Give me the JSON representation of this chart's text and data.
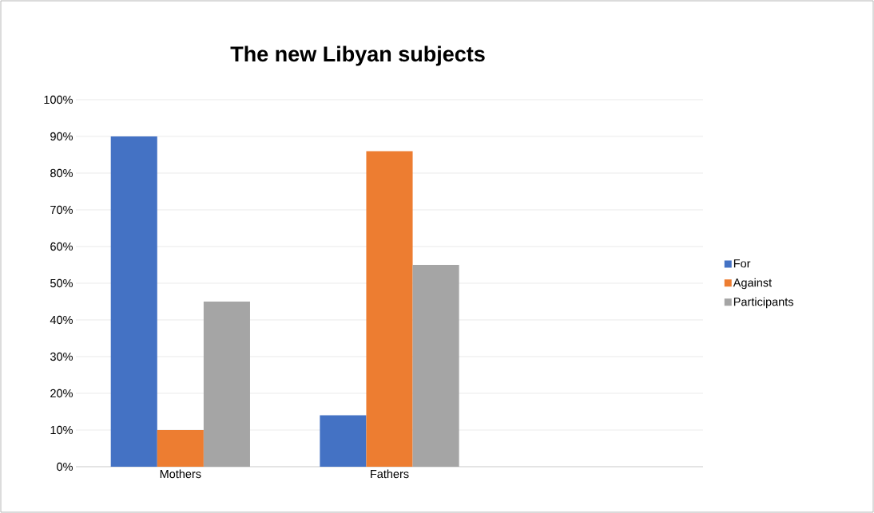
{
  "chart_data": {
    "type": "bar",
    "title": "The new Libyan subjects",
    "categories": [
      "Mothers",
      "Fathers",
      null
    ],
    "series": [
      {
        "name": "For",
        "color": "#4472c4",
        "values": [
          90,
          14,
          null
        ]
      },
      {
        "name": "Against",
        "color": "#ed7d31",
        "values": [
          10,
          86,
          null
        ]
      },
      {
        "name": "Participants",
        "color": "#a5a5a5",
        "values": [
          45,
          55,
          null
        ]
      }
    ],
    "ylim": [
      0,
      100
    ],
    "yticks": [
      {
        "value": 0,
        "label": "0%"
      },
      {
        "value": 10,
        "label": "10%"
      },
      {
        "value": 20,
        "label": "20%"
      },
      {
        "value": 30,
        "label": "30%"
      },
      {
        "value": 40,
        "label": "40%"
      },
      {
        "value": 50,
        "label": "50%"
      },
      {
        "value": 60,
        "label": "60%"
      },
      {
        "value": 70,
        "label": "70%"
      },
      {
        "value": 80,
        "label": "80%"
      },
      {
        "value": 90,
        "label": "90%"
      },
      {
        "value": 100,
        "label": "100%"
      }
    ],
    "grid": "y",
    "legend": "right"
  }
}
